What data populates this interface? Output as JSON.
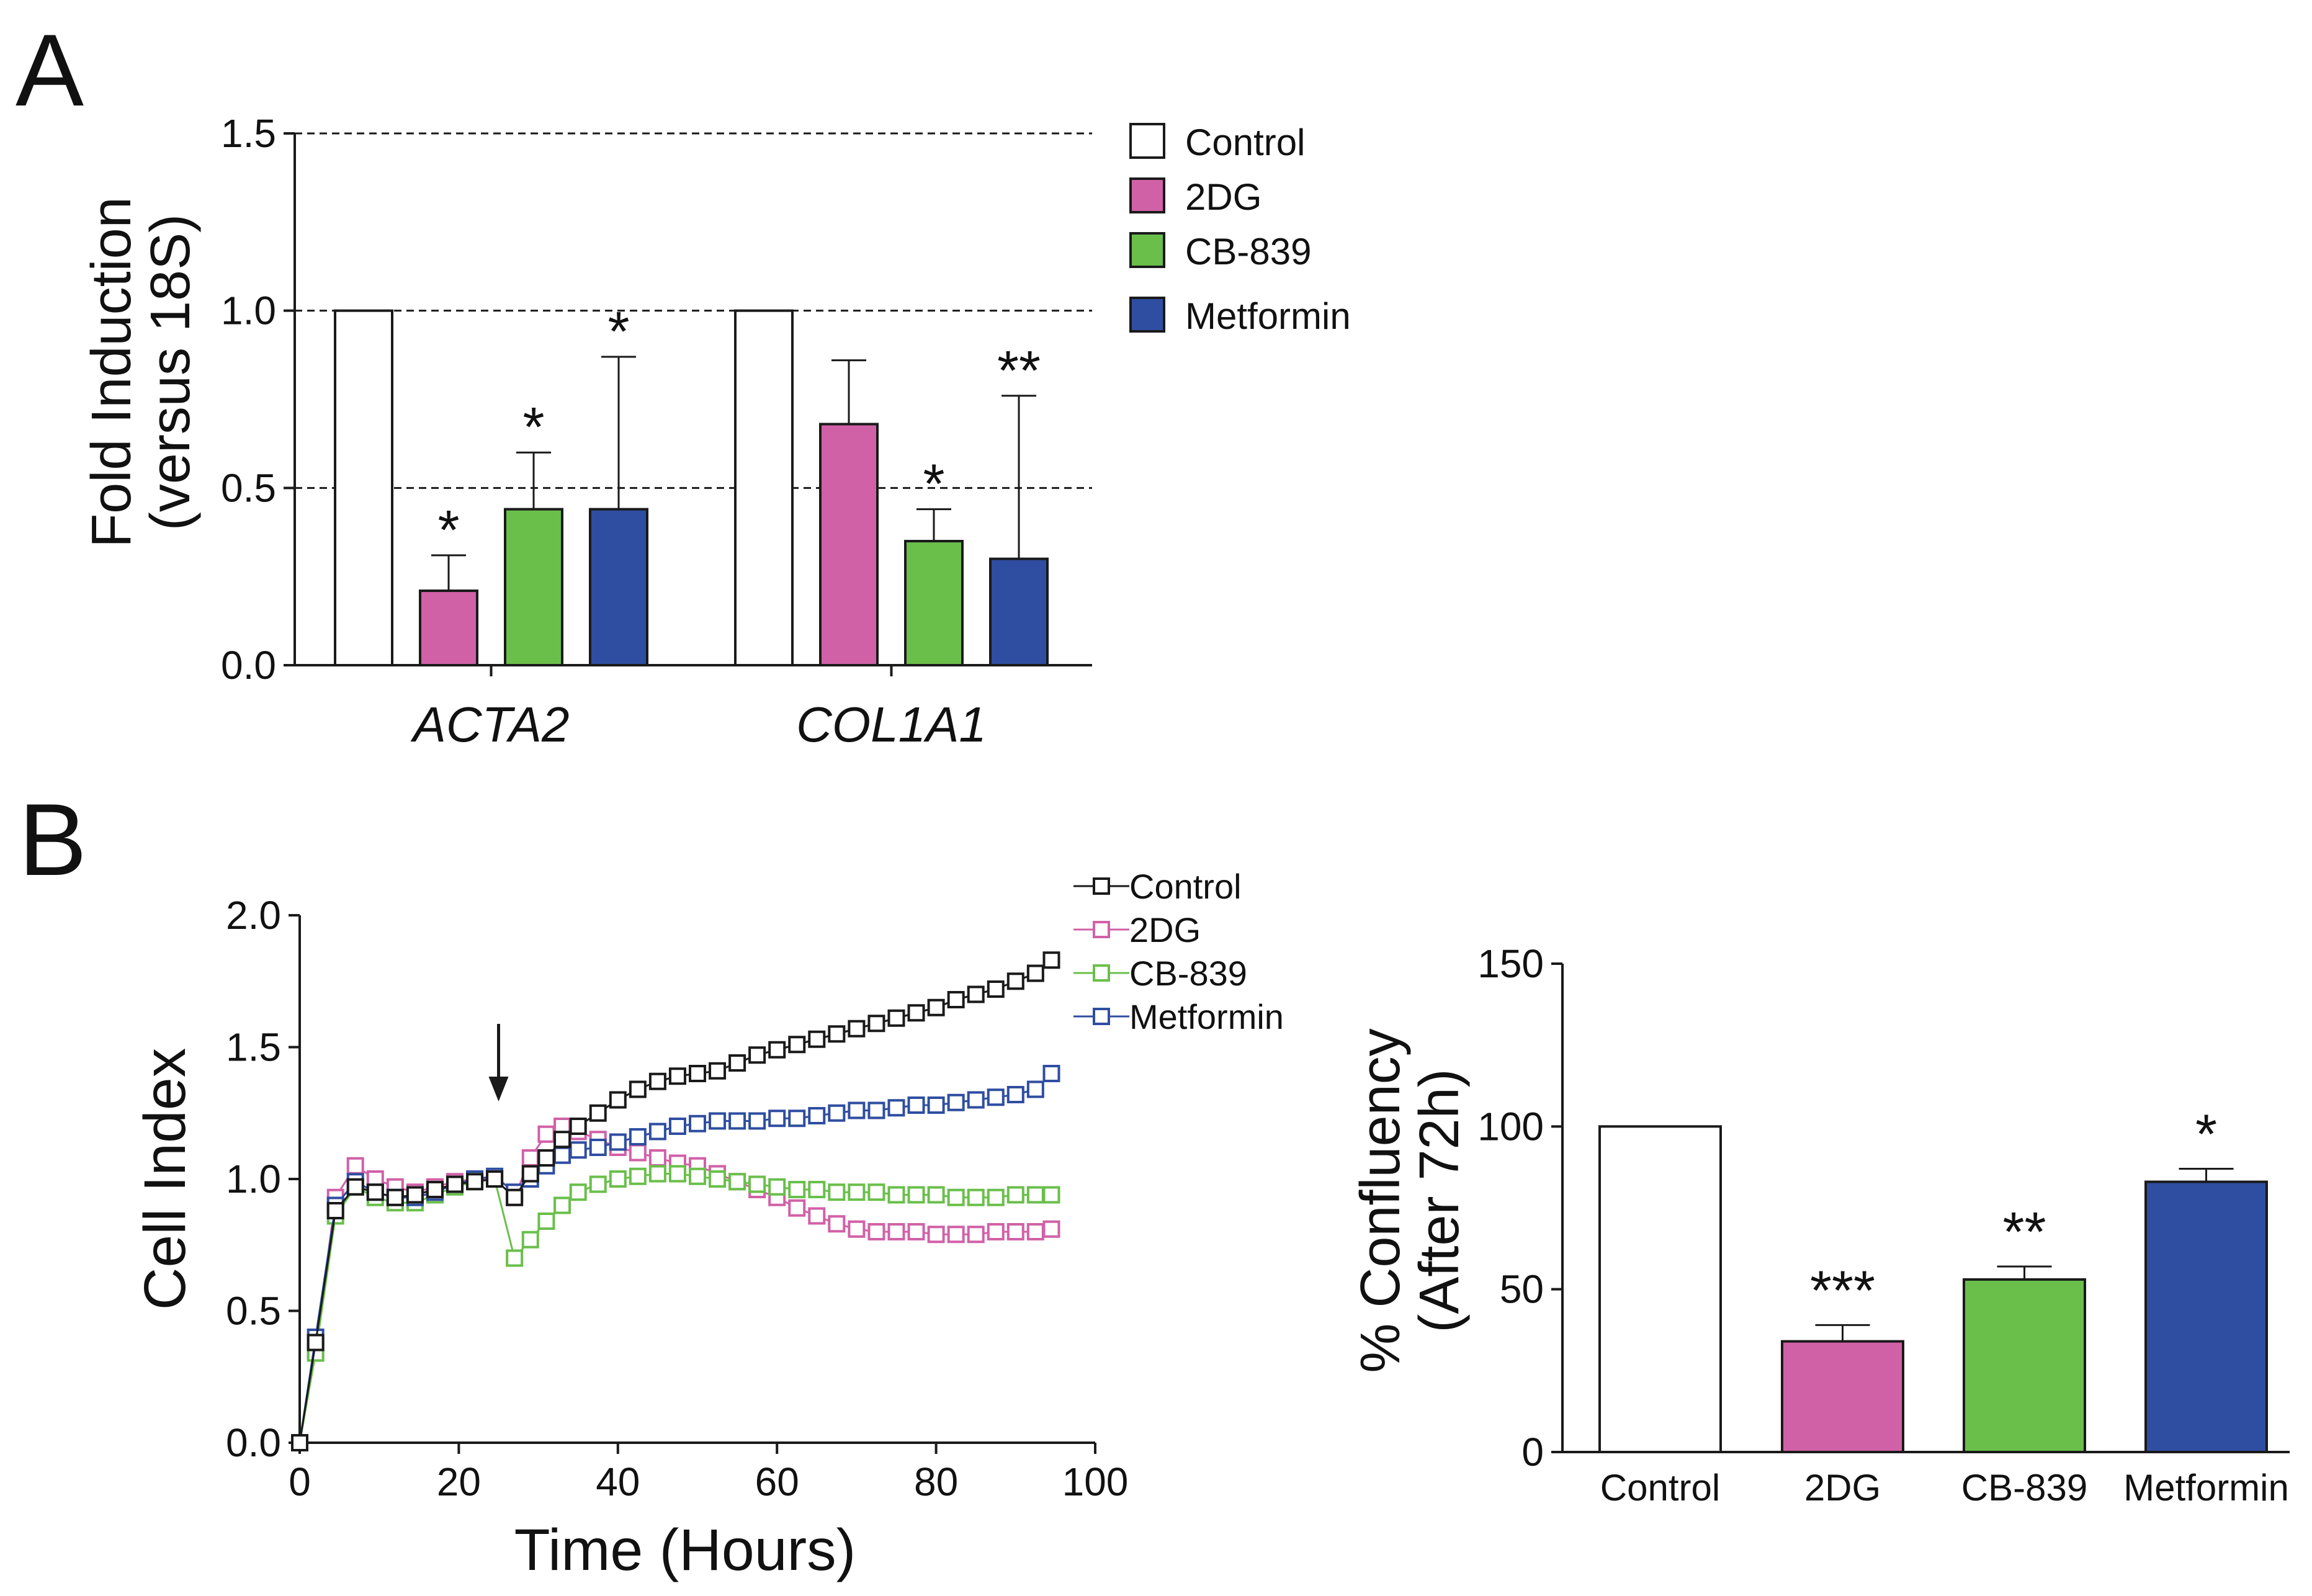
{
  "colors": {
    "control": "#ffffff",
    "2dg": "#d161a7",
    "cb839": "#6abf4b",
    "metformin": "#2f4ea1",
    "axis": "#1a1a1a"
  },
  "chart_data": [
    {
      "panel": "A",
      "type": "bar",
      "ylabel": "Fold Induction (versus 18S)",
      "ylabel_lines": [
        "Fold Induction",
        "(versus 18S)"
      ],
      "ylim": [
        0,
        1.5
      ],
      "yticks": [
        "0.0",
        "0.5",
        "1.0",
        "1.5"
      ],
      "ytick_values": [
        0,
        0.5,
        1.0,
        1.5
      ],
      "dashed_gridlines": [
        0.5,
        1.0,
        1.5
      ],
      "categories": [
        "ACTA2",
        "COL1A1"
      ],
      "series": [
        {
          "name": "Control",
          "color_key": "control",
          "values": [
            1.0,
            1.0
          ],
          "errors": [
            0,
            0
          ],
          "sig": [
            "",
            ""
          ]
        },
        {
          "name": "2DG",
          "color_key": "2dg",
          "values": [
            0.21,
            0.68
          ],
          "errors": [
            0.1,
            0.18
          ],
          "sig": [
            "*",
            ""
          ]
        },
        {
          "name": "CB-839",
          "color_key": "cb839",
          "values": [
            0.44,
            0.35
          ],
          "errors": [
            0.16,
            0.09
          ],
          "sig": [
            "*",
            "*"
          ]
        },
        {
          "name": "Metformin",
          "color_key": "metformin",
          "values": [
            0.44,
            0.3
          ],
          "errors": [
            0.43,
            0.46
          ],
          "sig": [
            "*",
            "**"
          ]
        }
      ],
      "legend": [
        "Control",
        "2DG",
        "CB-839",
        "Metformin"
      ]
    },
    {
      "panel": "B",
      "type": "line",
      "xlabel": "Time (Hours)",
      "ylabel": "Cell  Index",
      "xlim": [
        0,
        100
      ],
      "ylim": [
        0,
        2.0
      ],
      "xticks": [
        "0",
        "20",
        "40",
        "60",
        "80",
        "100"
      ],
      "xtick_values": [
        0,
        20,
        40,
        60,
        80,
        100
      ],
      "yticks": [
        "0.0",
        "0.5",
        "1.0",
        "1.5",
        "2.0"
      ],
      "ytick_values": [
        0,
        0.5,
        1.0,
        1.5,
        2.0
      ],
      "treatment_arrow_x": 25,
      "x": [
        0,
        2,
        4.5,
        7,
        9.5,
        12,
        14.5,
        17,
        19.5,
        22,
        24.5,
        27,
        29,
        31,
        33,
        35,
        37.5,
        40,
        42.5,
        45,
        47.5,
        50,
        52.5,
        55,
        57.5,
        60,
        62.5,
        65,
        67.5,
        70,
        72.5,
        75,
        77.5,
        80,
        82.5,
        85,
        87.5,
        90,
        92.5,
        94.5
      ],
      "series": [
        {
          "name": "Control",
          "color_key": "axis",
          "values": [
            0.0,
            0.38,
            0.88,
            0.97,
            0.95,
            0.93,
            0.94,
            0.96,
            0.98,
            0.99,
            1.0,
            0.93,
            1.02,
            1.08,
            1.15,
            1.2,
            1.25,
            1.3,
            1.34,
            1.37,
            1.39,
            1.4,
            1.41,
            1.44,
            1.47,
            1.49,
            1.51,
            1.53,
            1.55,
            1.57,
            1.59,
            1.61,
            1.63,
            1.65,
            1.68,
            1.7,
            1.72,
            1.75,
            1.78,
            1.83
          ]
        },
        {
          "name": "2DG",
          "color_key": "2dg",
          "values": [
            0.0,
            0.35,
            0.93,
            1.05,
            1.0,
            0.97,
            0.95,
            0.97,
            0.99,
            1.0,
            1.0,
            0.93,
            1.08,
            1.17,
            1.2,
            1.18,
            1.15,
            1.12,
            1.1,
            1.08,
            1.06,
            1.05,
            1.02,
            0.99,
            0.96,
            0.93,
            0.89,
            0.86,
            0.83,
            0.81,
            0.8,
            0.8,
            0.8,
            0.79,
            0.79,
            0.79,
            0.8,
            0.8,
            0.8,
            0.81
          ]
        },
        {
          "name": "CB-839",
          "color_key": "cb839",
          "values": [
            0.0,
            0.34,
            0.86,
            0.97,
            0.93,
            0.91,
            0.91,
            0.94,
            0.97,
            0.99,
            1.0,
            0.7,
            0.77,
            0.84,
            0.9,
            0.95,
            0.98,
            1.0,
            1.01,
            1.02,
            1.02,
            1.01,
            1.0,
            0.99,
            0.98,
            0.97,
            0.96,
            0.96,
            0.95,
            0.95,
            0.95,
            0.94,
            0.94,
            0.94,
            0.93,
            0.93,
            0.93,
            0.94,
            0.94,
            0.94
          ]
        },
        {
          "name": "Metformin",
          "color_key": "metformin",
          "values": [
            0.0,
            0.4,
            0.9,
            0.99,
            0.95,
            0.93,
            0.93,
            0.95,
            0.98,
            1.0,
            1.01,
            0.95,
            1.0,
            1.05,
            1.09,
            1.11,
            1.12,
            1.14,
            1.16,
            1.18,
            1.2,
            1.21,
            1.22,
            1.22,
            1.22,
            1.23,
            1.23,
            1.24,
            1.25,
            1.26,
            1.26,
            1.27,
            1.28,
            1.28,
            1.29,
            1.3,
            1.31,
            1.32,
            1.34,
            1.4
          ]
        }
      ],
      "legend": [
        "Control",
        "2DG",
        "CB-839",
        "Metformin"
      ]
    },
    {
      "panel": "B-right",
      "type": "bar",
      "ylabel": "% Confluency (After 72h)",
      "ylabel_lines": [
        "% Confluency",
        "(After 72h)"
      ],
      "ylim": [
        0,
        150
      ],
      "yticks": [
        "0",
        "50",
        "100",
        "150"
      ],
      "ytick_values": [
        0,
        50,
        100,
        150
      ],
      "categories": [
        "Control",
        "2DG",
        "CB-839",
        "Metformin"
      ],
      "color_keys": [
        "control",
        "2dg",
        "cb839",
        "metformin"
      ],
      "values": [
        100,
        34,
        53,
        83
      ],
      "errors": [
        0,
        5,
        4,
        4
      ],
      "sig": [
        "",
        "***",
        "**",
        "*"
      ]
    }
  ],
  "panel_labels": [
    "A",
    "B"
  ]
}
